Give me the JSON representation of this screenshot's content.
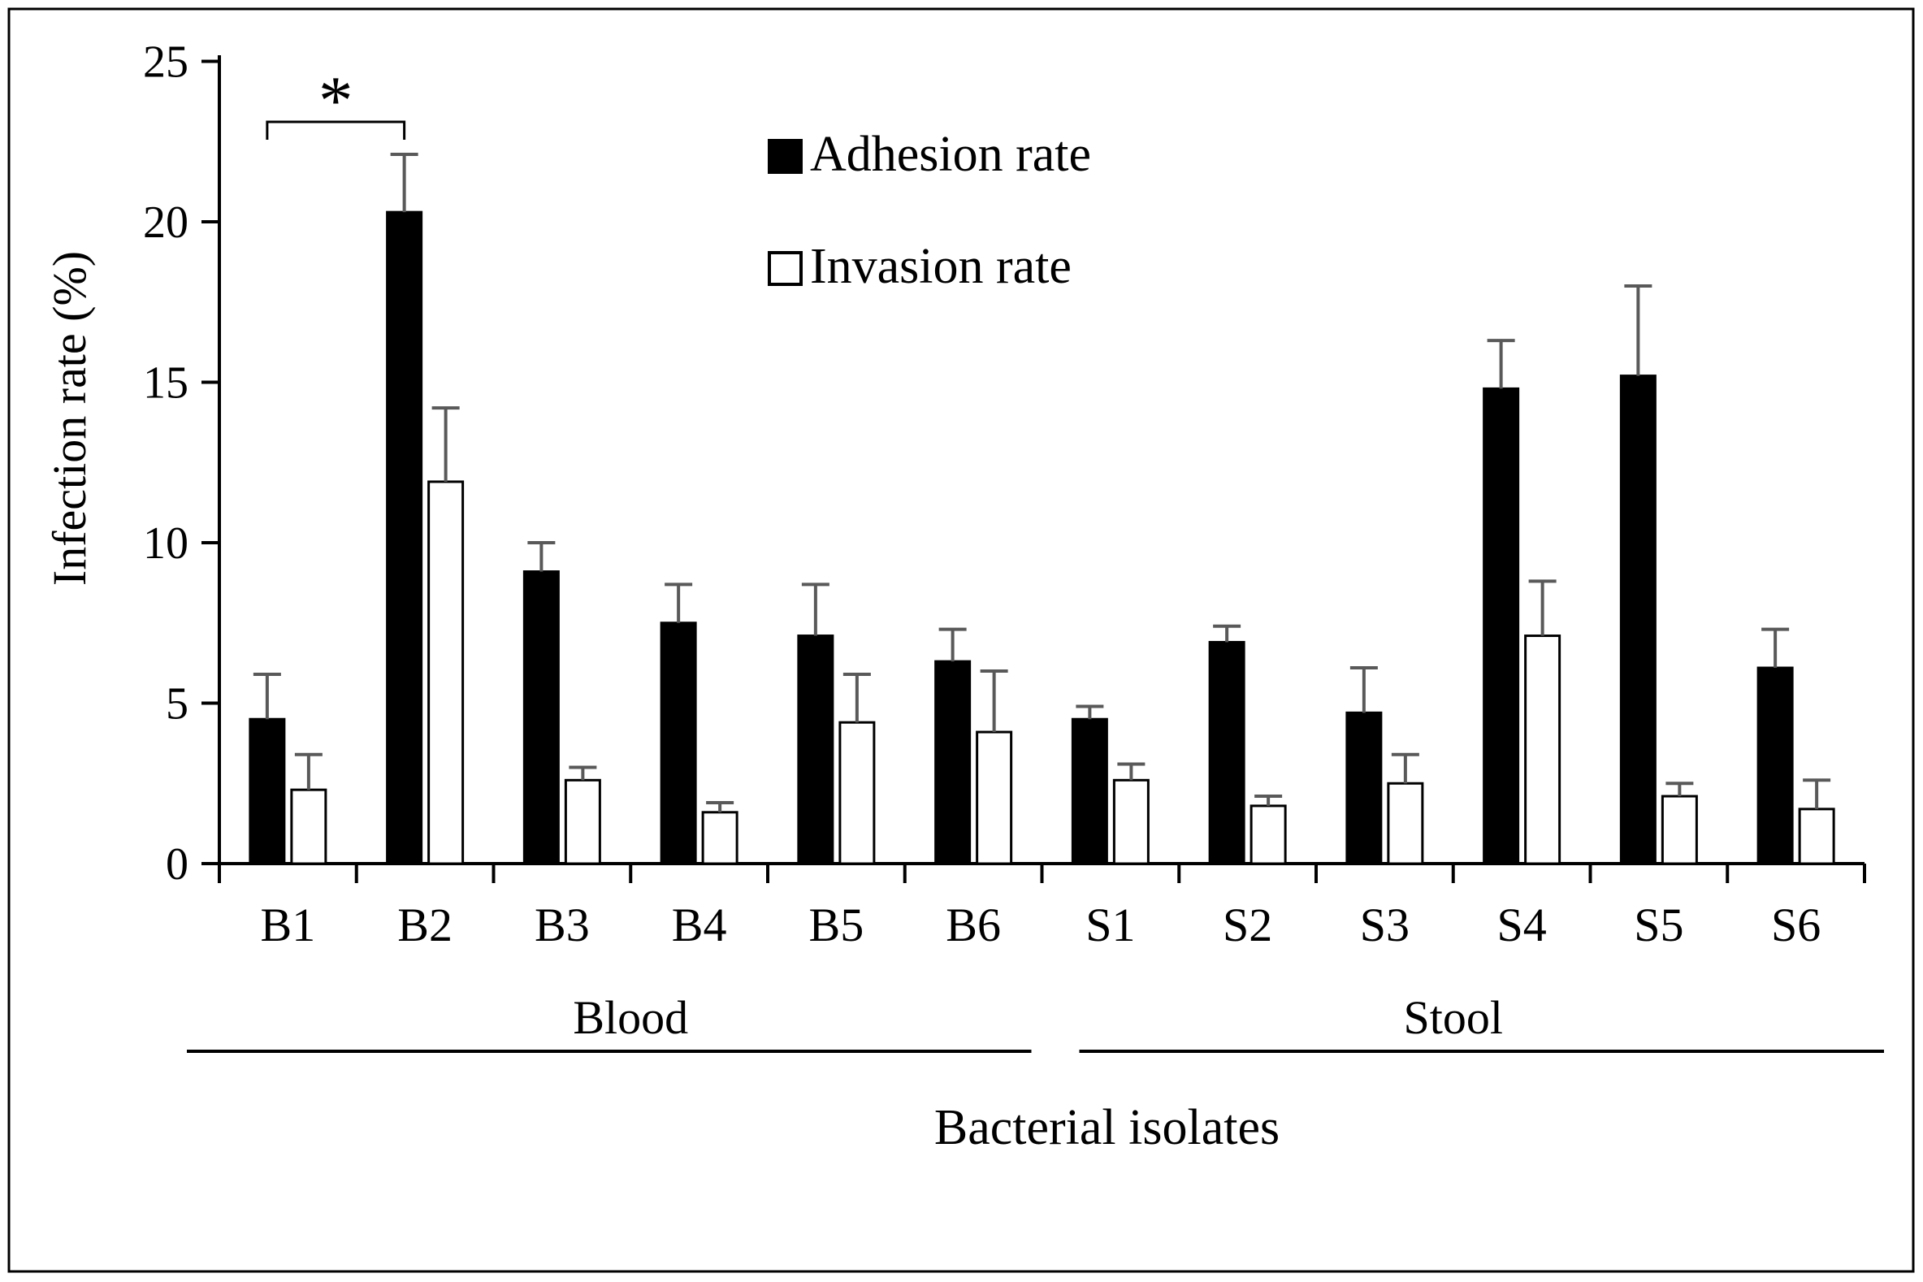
{
  "figure": {
    "background_color": "#ffffff",
    "border_color": "#000000",
    "axis_color": "#000000",
    "error_bar_color": "#595959"
  },
  "chart_data": {
    "type": "bar",
    "title": "",
    "xlabel": "Bacterial isolates",
    "ylabel": "Infection rate (%)",
    "ylim": [
      0,
      25
    ],
    "yticks": [
      0,
      5,
      10,
      15,
      20,
      25
    ],
    "grid": "off",
    "legend_position": "top-center-inside",
    "categories": [
      "B1",
      "B2",
      "B3",
      "B4",
      "B5",
      "B6",
      "S1",
      "S2",
      "S3",
      "S4",
      "S5",
      "S6"
    ],
    "group_labels": [
      {
        "label": "Blood",
        "categories": [
          "B1",
          "B2",
          "B3",
          "B4",
          "B5",
          "B6"
        ]
      },
      {
        "label": "Stool",
        "categories": [
          "S1",
          "S2",
          "S3",
          "S4",
          "S5",
          "S6"
        ]
      }
    ],
    "series": [
      {
        "name": "Adhesion rate",
        "fill": "#000000",
        "stroke": "#000000",
        "values": [
          4.5,
          20.3,
          9.1,
          7.5,
          7.1,
          6.3,
          4.5,
          6.9,
          4.7,
          14.8,
          15.2,
          6.1
        ],
        "errors_plus": [
          1.4,
          1.8,
          0.9,
          1.2,
          1.6,
          1.0,
          0.4,
          0.5,
          1.4,
          1.5,
          2.8,
          1.2
        ]
      },
      {
        "name": "Invasion rate",
        "fill": "#ffffff",
        "stroke": "#000000",
        "values": [
          2.3,
          11.9,
          2.6,
          1.6,
          4.4,
          4.1,
          2.6,
          1.8,
          2.5,
          7.1,
          2.1,
          1.7
        ],
        "errors_plus": [
          1.1,
          2.3,
          0.4,
          0.3,
          1.5,
          1.9,
          0.5,
          0.3,
          0.9,
          1.7,
          0.4,
          0.9
        ]
      }
    ],
    "significance": {
      "label": "*",
      "from_category": "B1",
      "to_category": "B2",
      "series": "Adhesion rate"
    }
  }
}
